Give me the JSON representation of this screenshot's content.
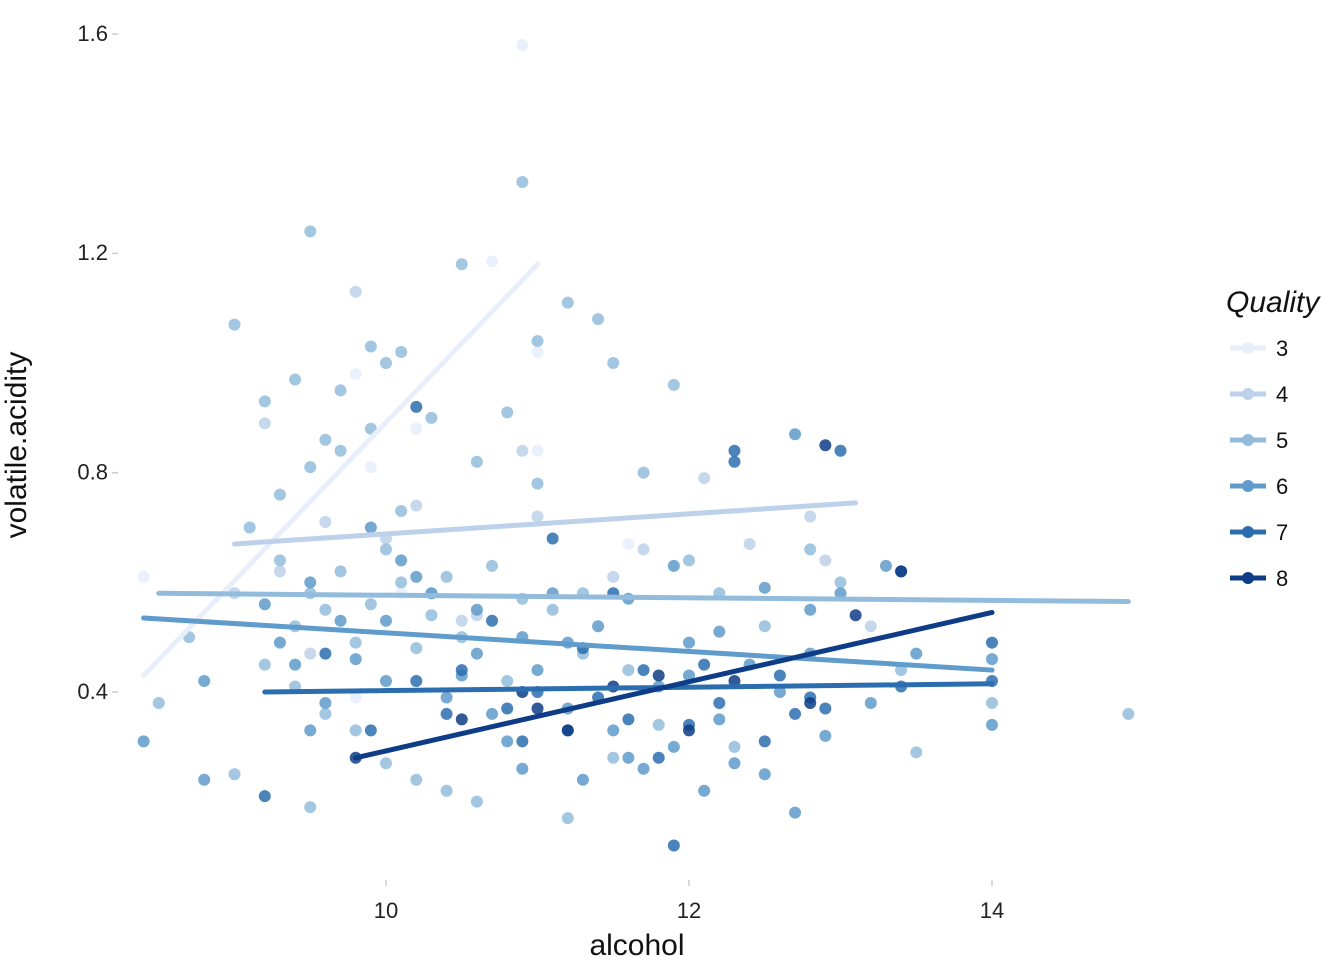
{
  "chart_data": {
    "type": "scatter",
    "title": "",
    "xlabel": "alcohol",
    "ylabel": "volatile.acidity",
    "xlim": [
      8.0,
      15.5
    ],
    "ylim": [
      0.05,
      1.65
    ],
    "x_ticks": [
      "10",
      "12",
      "14"
    ],
    "x_tick_values": [
      10,
      12,
      14
    ],
    "y_ticks": [
      "0.4",
      "0.8",
      "1.2",
      "1.6"
    ],
    "y_tick_values": [
      0.4,
      0.8,
      1.2,
      1.6
    ],
    "grid": false,
    "legend": {
      "title": "Quality",
      "placement": "right"
    },
    "series": [
      {
        "name": "3",
        "color": "#e8effb",
        "points": [
          [
            8.4,
            0.61
          ],
          [
            9.8,
            0.98
          ],
          [
            10.9,
            1.58
          ],
          [
            10.7,
            1.185
          ],
          [
            11.0,
            1.02
          ],
          [
            9.0,
            0.58
          ],
          [
            10.2,
            0.88
          ],
          [
            9.9,
            0.81
          ],
          [
            10.1,
            0.58
          ],
          [
            11.0,
            0.84
          ],
          [
            9.8,
            0.39
          ],
          [
            11.6,
            0.67
          ]
        ],
        "trend": [
          [
            8.4,
            0.43
          ],
          [
            11.0,
            1.18
          ]
        ]
      },
      {
        "name": "4",
        "color": "#bdd1ea",
        "points": [
          [
            9.0,
            0.58
          ],
          [
            9.3,
            0.62
          ],
          [
            9.6,
            0.71
          ],
          [
            9.8,
            1.13
          ],
          [
            10.0,
            0.68
          ],
          [
            10.2,
            0.74
          ],
          [
            10.5,
            0.53
          ],
          [
            10.9,
            0.84
          ],
          [
            11.0,
            0.72
          ],
          [
            11.5,
            0.61
          ],
          [
            12.1,
            0.79
          ],
          [
            12.4,
            0.67
          ],
          [
            12.9,
            0.64
          ],
          [
            13.2,
            0.52
          ],
          [
            9.2,
            0.89
          ],
          [
            10.3,
            0.58
          ],
          [
            11.7,
            0.66
          ],
          [
            12.8,
            0.72
          ],
          [
            9.5,
            0.47
          ],
          [
            10.6,
            0.54
          ]
        ],
        "trend": [
          [
            9.0,
            0.67
          ],
          [
            13.1,
            0.745
          ]
        ]
      },
      {
        "name": "5",
        "color": "#93bcdc",
        "points": [
          [
            8.5,
            0.38
          ],
          [
            8.7,
            0.5
          ],
          [
            9.0,
            1.07
          ],
          [
            9.2,
            0.93
          ],
          [
            9.4,
            0.97
          ],
          [
            9.5,
            1.24
          ],
          [
            9.6,
            0.86
          ],
          [
            9.7,
            0.95
          ],
          [
            9.9,
            1.03
          ],
          [
            10.0,
            1.0
          ],
          [
            10.1,
            1.02
          ],
          [
            10.3,
            0.9
          ],
          [
            10.5,
            1.18
          ],
          [
            10.6,
            0.82
          ],
          [
            10.8,
            0.91
          ],
          [
            10.9,
            1.33
          ],
          [
            11.0,
            1.04
          ],
          [
            11.2,
            1.11
          ],
          [
            11.4,
            1.08
          ],
          [
            11.5,
            1.0
          ],
          [
            11.7,
            0.8
          ],
          [
            11.9,
            0.96
          ],
          [
            12.0,
            0.64
          ],
          [
            12.2,
            0.58
          ],
          [
            12.5,
            0.52
          ],
          [
            12.8,
            0.66
          ],
          [
            13.0,
            0.6
          ],
          [
            13.4,
            0.44
          ],
          [
            13.5,
            0.29
          ],
          [
            14.0,
            0.38
          ],
          [
            14.9,
            0.36
          ],
          [
            9.3,
            0.64
          ],
          [
            9.5,
            0.58
          ],
          [
            9.7,
            0.62
          ],
          [
            9.9,
            0.56
          ],
          [
            10.1,
            0.6
          ],
          [
            10.3,
            0.54
          ],
          [
            10.5,
            0.5
          ],
          [
            10.7,
            0.63
          ],
          [
            10.9,
            0.57
          ],
          [
            11.1,
            0.55
          ],
          [
            11.3,
            0.58
          ],
          [
            9.4,
            0.52
          ],
          [
            9.6,
            0.55
          ],
          [
            9.8,
            0.49
          ],
          [
            10.0,
            0.66
          ],
          [
            10.2,
            0.48
          ],
          [
            10.4,
            0.61
          ],
          [
            9.2,
            0.45
          ],
          [
            9.4,
            0.41
          ],
          [
            9.6,
            0.36
          ],
          [
            9.8,
            0.33
          ],
          [
            10.0,
            0.27
          ],
          [
            10.2,
            0.24
          ],
          [
            10.4,
            0.22
          ],
          [
            10.6,
            0.2
          ],
          [
            9.0,
            0.25
          ],
          [
            9.5,
            0.19
          ],
          [
            11.2,
            0.17
          ],
          [
            11.5,
            0.28
          ],
          [
            11.8,
            0.34
          ],
          [
            12.3,
            0.3
          ],
          [
            9.1,
            0.7
          ],
          [
            9.3,
            0.76
          ],
          [
            9.5,
            0.81
          ],
          [
            9.7,
            0.84
          ],
          [
            9.9,
            0.88
          ],
          [
            10.1,
            0.73
          ],
          [
            11.0,
            0.78
          ],
          [
            11.3,
            0.47
          ],
          [
            11.6,
            0.44
          ],
          [
            10.8,
            0.42
          ]
        ],
        "trend": [
          [
            8.5,
            0.58
          ],
          [
            14.9,
            0.565
          ]
        ]
      },
      {
        "name": "6",
        "color": "#5f9bcb",
        "points": [
          [
            8.4,
            0.31
          ],
          [
            8.8,
            0.24
          ],
          [
            8.8,
            0.42
          ],
          [
            9.2,
            0.56
          ],
          [
            9.5,
            0.33
          ],
          [
            9.8,
            0.46
          ],
          [
            10.0,
            0.53
          ],
          [
            10.2,
            0.61
          ],
          [
            10.4,
            0.39
          ],
          [
            10.6,
            0.47
          ],
          [
            10.8,
            0.31
          ],
          [
            11.0,
            0.44
          ],
          [
            11.2,
            0.37
          ],
          [
            11.4,
            0.52
          ],
          [
            11.6,
            0.28
          ],
          [
            11.8,
            0.41
          ],
          [
            12.0,
            0.49
          ],
          [
            12.2,
            0.35
          ],
          [
            12.4,
            0.45
          ],
          [
            12.6,
            0.4
          ],
          [
            12.7,
            0.87
          ],
          [
            12.8,
            0.55
          ],
          [
            13.0,
            0.58
          ],
          [
            13.3,
            0.63
          ],
          [
            13.5,
            0.47
          ],
          [
            14.0,
            0.46
          ],
          [
            14.0,
            0.34
          ],
          [
            11.1,
            0.58
          ],
          [
            11.3,
            0.24
          ],
          [
            11.5,
            0.33
          ],
          [
            11.7,
            0.26
          ],
          [
            11.9,
            0.3
          ],
          [
            12.1,
            0.22
          ],
          [
            12.3,
            0.27
          ],
          [
            12.5,
            0.25
          ],
          [
            12.7,
            0.18
          ],
          [
            12.9,
            0.32
          ],
          [
            10.9,
            0.26
          ],
          [
            10.7,
            0.36
          ],
          [
            10.5,
            0.43
          ],
          [
            10.3,
            0.58
          ],
          [
            10.1,
            0.64
          ],
          [
            9.9,
            0.7
          ],
          [
            9.7,
            0.53
          ],
          [
            9.5,
            0.6
          ],
          [
            9.3,
            0.49
          ],
          [
            12.2,
            0.51
          ],
          [
            12.5,
            0.59
          ],
          [
            12.8,
            0.47
          ],
          [
            13.2,
            0.38
          ],
          [
            11.6,
            0.57
          ],
          [
            11.9,
            0.63
          ],
          [
            12.0,
            0.43
          ],
          [
            11.2,
            0.49
          ],
          [
            10.6,
            0.55
          ],
          [
            10.9,
            0.5
          ],
          [
            10.0,
            0.42
          ],
          [
            9.6,
            0.38
          ],
          [
            9.4,
            0.45
          ]
        ],
        "trend": [
          [
            8.4,
            0.535
          ],
          [
            14.0,
            0.44
          ]
        ]
      },
      {
        "name": "7",
        "color": "#2b6daf",
        "points": [
          [
            9.2,
            0.21
          ],
          [
            9.9,
            0.33
          ],
          [
            10.2,
            0.42
          ],
          [
            10.2,
            0.92
          ],
          [
            10.5,
            0.44
          ],
          [
            10.8,
            0.37
          ],
          [
            11.0,
            0.4
          ],
          [
            11.2,
            0.33
          ],
          [
            11.4,
            0.39
          ],
          [
            11.6,
            0.35
          ],
          [
            11.8,
            0.28
          ],
          [
            11.9,
            0.12
          ],
          [
            12.0,
            0.34
          ],
          [
            12.2,
            0.38
          ],
          [
            12.3,
            0.82
          ],
          [
            12.3,
            0.84
          ],
          [
            12.5,
            0.31
          ],
          [
            12.7,
            0.36
          ],
          [
            12.8,
            0.39
          ],
          [
            13.0,
            0.84
          ],
          [
            13.4,
            0.41
          ],
          [
            13.4,
            0.62
          ],
          [
            14.0,
            0.42
          ],
          [
            14.0,
            0.49
          ],
          [
            11.5,
            0.58
          ],
          [
            11.1,
            0.68
          ],
          [
            10.7,
            0.53
          ],
          [
            12.1,
            0.45
          ],
          [
            12.6,
            0.43
          ],
          [
            10.4,
            0.36
          ],
          [
            9.6,
            0.47
          ],
          [
            11.7,
            0.44
          ],
          [
            12.9,
            0.37
          ],
          [
            11.3,
            0.48
          ],
          [
            10.9,
            0.31
          ]
        ],
        "trend": [
          [
            9.2,
            0.4
          ],
          [
            14.0,
            0.415
          ]
        ]
      },
      {
        "name": "8",
        "color": "#0e3c86",
        "points": [
          [
            9.8,
            0.28
          ],
          [
            10.5,
            0.35
          ],
          [
            11.0,
            0.37
          ],
          [
            11.5,
            0.41
          ],
          [
            11.8,
            0.43
          ],
          [
            12.0,
            0.33
          ],
          [
            12.3,
            0.42
          ],
          [
            12.8,
            0.38
          ],
          [
            12.9,
            0.85
          ],
          [
            13.1,
            0.54
          ],
          [
            13.4,
            0.62
          ],
          [
            11.2,
            0.33
          ],
          [
            10.9,
            0.4
          ]
        ],
        "trend": [
          [
            9.8,
            0.28
          ],
          [
            14.0,
            0.545
          ]
        ]
      }
    ]
  }
}
